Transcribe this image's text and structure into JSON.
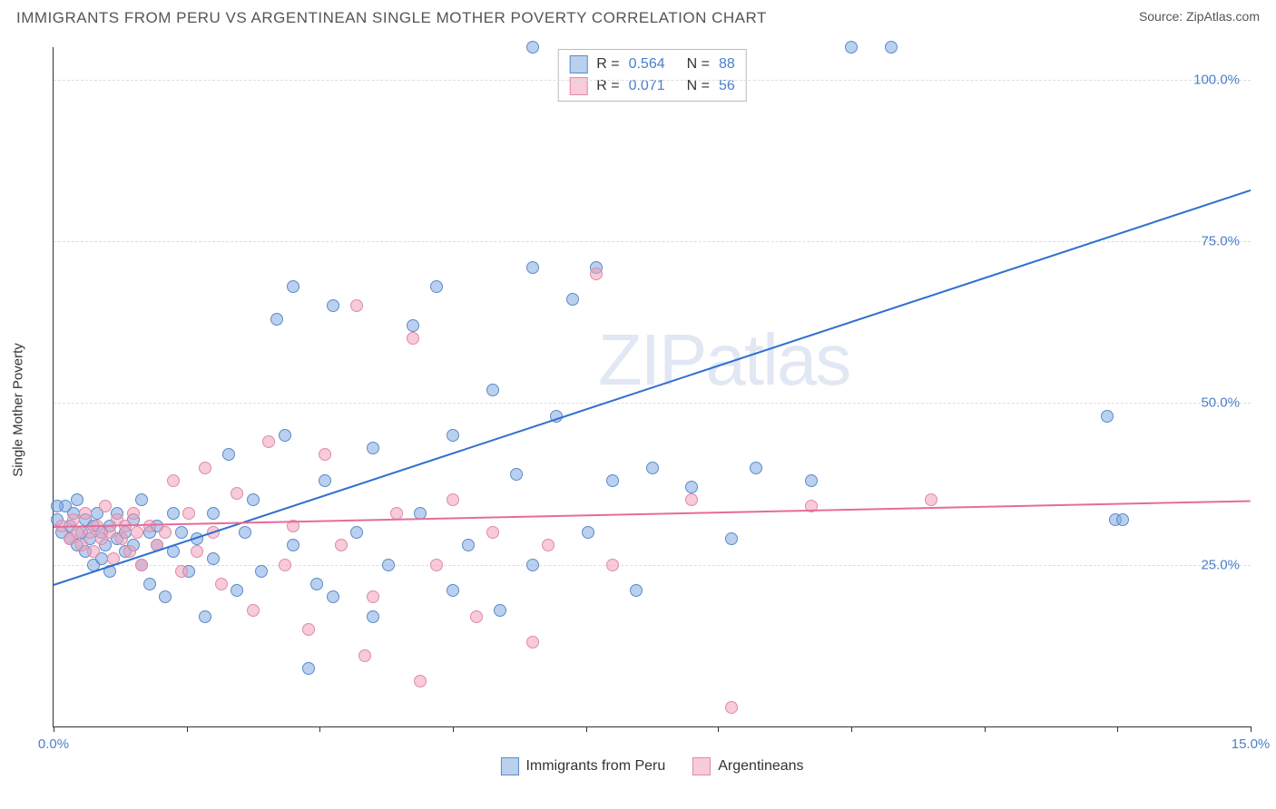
{
  "header": {
    "title": "IMMIGRANTS FROM PERU VS ARGENTINEAN SINGLE MOTHER POVERTY CORRELATION CHART",
    "source_prefix": "Source: ",
    "source_name": "ZipAtlas.com"
  },
  "chart": {
    "type": "scatter",
    "ylabel": "Single Mother Poverty",
    "xlim": [
      0,
      15
    ],
    "ylim": [
      0,
      105
    ],
    "x_ticks": [
      0,
      1.67,
      3.33,
      5,
      6.67,
      8.33,
      10,
      11.67,
      13.33,
      15
    ],
    "x_tick_labels": {
      "0": "0.0%",
      "15": "15.0%"
    },
    "y_grid": [
      25,
      50,
      75,
      100
    ],
    "y_tick_labels": {
      "25": "25.0%",
      "50": "50.0%",
      "75": "75.0%",
      "100": "100.0%"
    },
    "background_color": "#ffffff",
    "grid_color": "#dddddd",
    "axis_color": "#333333",
    "tick_label_color": "#4a7fc9",
    "point_radius": 7,
    "watermark": "ZIPatlas",
    "series": [
      {
        "name": "Immigrants from Peru",
        "fill_color": "rgba(130,170,225,0.55)",
        "stroke_color": "#5b8bc9",
        "line_color": "#2e6fd1",
        "line_width": 2.2,
        "stats": {
          "R": "0.564",
          "N": "88"
        },
        "trend": {
          "x1": 0,
          "y1": 22,
          "x2": 15,
          "y2": 83
        },
        "points": [
          [
            0.05,
            32
          ],
          [
            0.1,
            30
          ],
          [
            0.15,
            34
          ],
          [
            0.2,
            29
          ],
          [
            0.2,
            31
          ],
          [
            0.25,
            33
          ],
          [
            0.3,
            28
          ],
          [
            0.3,
            35
          ],
          [
            0.35,
            30
          ],
          [
            0.4,
            32
          ],
          [
            0.4,
            27
          ],
          [
            0.45,
            29
          ],
          [
            0.5,
            31
          ],
          [
            0.5,
            25
          ],
          [
            0.55,
            33
          ],
          [
            0.6,
            30
          ],
          [
            0.6,
            26
          ],
          [
            0.65,
            28
          ],
          [
            0.7,
            31
          ],
          [
            0.7,
            24
          ],
          [
            0.8,
            29
          ],
          [
            0.8,
            33
          ],
          [
            0.9,
            27
          ],
          [
            0.9,
            30
          ],
          [
            1.0,
            28
          ],
          [
            1.0,
            32
          ],
          [
            1.1,
            25
          ],
          [
            1.1,
            35
          ],
          [
            1.2,
            30
          ],
          [
            1.2,
            22
          ],
          [
            1.3,
            28
          ],
          [
            1.3,
            31
          ],
          [
            1.4,
            20
          ],
          [
            1.5,
            33
          ],
          [
            1.5,
            27
          ],
          [
            1.6,
            30
          ],
          [
            1.7,
            24
          ],
          [
            1.8,
            29
          ],
          [
            1.9,
            17
          ],
          [
            2.0,
            33
          ],
          [
            2.0,
            26
          ],
          [
            2.2,
            42
          ],
          [
            2.3,
            21
          ],
          [
            2.4,
            30
          ],
          [
            2.5,
            35
          ],
          [
            2.6,
            24
          ],
          [
            2.8,
            63
          ],
          [
            2.9,
            45
          ],
          [
            3.0,
            68
          ],
          [
            3.0,
            28
          ],
          [
            3.2,
            9
          ],
          [
            3.3,
            22
          ],
          [
            3.4,
            38
          ],
          [
            3.5,
            65
          ],
          [
            3.5,
            20
          ],
          [
            3.8,
            30
          ],
          [
            4.0,
            43
          ],
          [
            4.0,
            17
          ],
          [
            4.2,
            25
          ],
          [
            4.5,
            62
          ],
          [
            4.6,
            33
          ],
          [
            4.8,
            68
          ],
          [
            5.0,
            21
          ],
          [
            5.0,
            45
          ],
          [
            5.2,
            28
          ],
          [
            5.5,
            52
          ],
          [
            5.6,
            18
          ],
          [
            5.8,
            39
          ],
          [
            6.0,
            71
          ],
          [
            6.0,
            25
          ],
          [
            6.0,
            105
          ],
          [
            6.3,
            48
          ],
          [
            6.5,
            66
          ],
          [
            6.7,
            30
          ],
          [
            6.8,
            71
          ],
          [
            7.0,
            38
          ],
          [
            7.3,
            21
          ],
          [
            7.5,
            40
          ],
          [
            8.0,
            37
          ],
          [
            8.5,
            29
          ],
          [
            8.8,
            40
          ],
          [
            9.5,
            38
          ],
          [
            10.0,
            105
          ],
          [
            10.5,
            105
          ],
          [
            13.2,
            48
          ],
          [
            13.3,
            32
          ],
          [
            13.4,
            32
          ],
          [
            0.05,
            34
          ]
        ]
      },
      {
        "name": "Argentineans",
        "fill_color": "rgba(240,160,185,0.55)",
        "stroke_color": "#e08aa8",
        "line_color": "#e76b9a",
        "line_width": 2.2,
        "stats": {
          "R": "0.071",
          "N": "56"
        },
        "trend": {
          "x1": 0,
          "y1": 31,
          "x2": 15,
          "y2": 35
        },
        "points": [
          [
            0.1,
            31
          ],
          [
            0.2,
            29
          ],
          [
            0.25,
            32
          ],
          [
            0.3,
            30
          ],
          [
            0.35,
            28
          ],
          [
            0.4,
            33
          ],
          [
            0.45,
            30
          ],
          [
            0.5,
            27
          ],
          [
            0.55,
            31
          ],
          [
            0.6,
            29
          ],
          [
            0.65,
            34
          ],
          [
            0.7,
            30
          ],
          [
            0.75,
            26
          ],
          [
            0.8,
            32
          ],
          [
            0.85,
            29
          ],
          [
            0.9,
            31
          ],
          [
            0.95,
            27
          ],
          [
            1.0,
            33
          ],
          [
            1.05,
            30
          ],
          [
            1.1,
            25
          ],
          [
            1.2,
            31
          ],
          [
            1.3,
            28
          ],
          [
            1.4,
            30
          ],
          [
            1.5,
            38
          ],
          [
            1.6,
            24
          ],
          [
            1.7,
            33
          ],
          [
            1.8,
            27
          ],
          [
            1.9,
            40
          ],
          [
            2.0,
            30
          ],
          [
            2.1,
            22
          ],
          [
            2.3,
            36
          ],
          [
            2.5,
            18
          ],
          [
            2.7,
            44
          ],
          [
            2.9,
            25
          ],
          [
            3.0,
            31
          ],
          [
            3.2,
            15
          ],
          [
            3.4,
            42
          ],
          [
            3.6,
            28
          ],
          [
            3.8,
            65
          ],
          [
            4.0,
            20
          ],
          [
            4.3,
            33
          ],
          [
            4.5,
            60
          ],
          [
            4.8,
            25
          ],
          [
            5.0,
            35
          ],
          [
            5.3,
            17
          ],
          [
            5.5,
            30
          ],
          [
            6.0,
            13
          ],
          [
            6.2,
            28
          ],
          [
            6.8,
            70
          ],
          [
            7.0,
            25
          ],
          [
            8.0,
            35
          ],
          [
            8.5,
            3
          ],
          [
            9.5,
            34
          ],
          [
            11.0,
            35
          ],
          [
            4.6,
            7
          ],
          [
            3.9,
            11
          ]
        ]
      }
    ],
    "legend": [
      {
        "label": "Immigrants from Peru",
        "fill": "rgba(130,170,225,0.55)",
        "stroke": "#5b8bc9"
      },
      {
        "label": "Argentineans",
        "fill": "rgba(240,160,185,0.55)",
        "stroke": "#e08aa8"
      }
    ]
  }
}
